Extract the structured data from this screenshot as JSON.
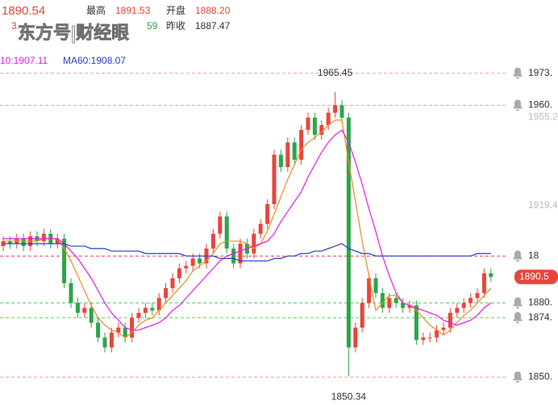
{
  "quote": {
    "last": "1890.54",
    "row1": [
      {
        "label": "最高",
        "value": "1891.53"
      },
      {
        "label": "开盘",
        "value": "1888.20"
      }
    ],
    "row2_partial": [
      "3.",
      "59"
    ],
    "prev_close": {
      "label": "昨收",
      "value": "1887.47"
    }
  },
  "watermark": "东方号|财经眼",
  "legend": [
    "10:1907.11",
    "MA60:1908.07"
  ],
  "chart_data": {
    "type": "candlestick",
    "up_color": "#e8453c",
    "down_color": "#2ca54a",
    "open": [
      1903,
      1905,
      1904,
      1906,
      1903,
      1907,
      1905,
      1908,
      1904,
      1906,
      1888,
      1880,
      1876,
      1878,
      1872,
      1866,
      1862,
      1868,
      1870,
      1866,
      1874,
      1876,
      1878,
      1877,
      1882,
      1886,
      1890,
      1894,
      1895,
      1898,
      1896,
      1902,
      1908,
      1915,
      1902,
      1896,
      1904,
      1900,
      1908,
      1912,
      1920,
      1940,
      1935,
      1945,
      1938,
      1950,
      1955,
      1948,
      1952,
      1957,
      1960,
      1955,
      1862,
      1870,
      1880,
      1890,
      1884,
      1878,
      1882,
      1880,
      1878,
      1879,
      1865,
      1866,
      1866,
      1869,
      1870,
      1876,
      1878,
      1880,
      1882,
      1884,
      1892
    ],
    "high": [
      1907,
      1907,
      1908,
      1908,
      1909,
      1909,
      1910,
      1910,
      1908,
      1908,
      1890,
      1882,
      1880,
      1880,
      1874,
      1868,
      1870,
      1872,
      1872,
      1876,
      1878,
      1880,
      1880,
      1884,
      1888,
      1892,
      1896,
      1897,
      1900,
      1900,
      1904,
      1910,
      1917,
      1917,
      1904,
      1906,
      1906,
      1910,
      1914,
      1922,
      1942,
      1942,
      1947,
      1947,
      1952,
      1957,
      1957,
      1954,
      1959,
      1965.45,
      1962,
      1957,
      1872,
      1882,
      1892,
      1892,
      1886,
      1884,
      1884,
      1882,
      1881,
      1881,
      1868,
      1868,
      1871,
      1872,
      1878,
      1880,
      1882,
      1884,
      1886,
      1894,
      1894
    ],
    "low": [
      1901,
      1902,
      1902,
      1901,
      1901,
      1903,
      1903,
      1902,
      1902,
      1886,
      1878,
      1874,
      1874,
      1870,
      1864,
      1860,
      1860,
      1866,
      1864,
      1864,
      1872,
      1874,
      1875,
      1875,
      1880,
      1884,
      1888,
      1892,
      1893,
      1894,
      1894,
      1900,
      1906,
      1900,
      1894,
      1894,
      1898,
      1898,
      1906,
      1910,
      1918,
      1933,
      1933,
      1936,
      1936,
      1948,
      1946,
      1946,
      1950,
      1955,
      1953,
      1850.34,
      1860,
      1868,
      1878,
      1882,
      1876,
      1876,
      1878,
      1876,
      1876,
      1863,
      1863,
      1864,
      1864,
      1867,
      1868,
      1874,
      1876,
      1878,
      1880,
      1882,
      1888.5
    ],
    "close": [
      1905,
      1904,
      1906,
      1903,
      1907,
      1905,
      1908,
      1904,
      1906,
      1888,
      1880,
      1876,
      1878,
      1872,
      1866,
      1862,
      1868,
      1870,
      1866,
      1874,
      1876,
      1878,
      1877,
      1882,
      1886,
      1890,
      1894,
      1895,
      1898,
      1896,
      1902,
      1908,
      1915,
      1902,
      1896,
      1904,
      1900,
      1908,
      1912,
      1920,
      1940,
      1935,
      1945,
      1938,
      1950,
      1955,
      1948,
      1952,
      1957,
      1960,
      1955,
      1862,
      1870,
      1880,
      1890,
      1884,
      1878,
      1882,
      1880,
      1878,
      1879,
      1865,
      1866,
      1866,
      1869,
      1870,
      1876,
      1878,
      1880,
      1882,
      1884,
      1892,
      1890.5
    ],
    "series": [
      {
        "color": "#f08a1c",
        "values": [
          1905,
          1905,
          1905,
          1905,
          1905,
          1905,
          1906,
          1906,
          1906,
          1902,
          1897,
          1891,
          1885,
          1879,
          1874,
          1871,
          1869,
          1868,
          1866,
          1868,
          1871,
          1873,
          1874,
          1877,
          1880,
          1883,
          1886,
          1889,
          1893,
          1895,
          1897,
          1900,
          1904,
          1905,
          1905,
          1905,
          1904,
          1902,
          1904,
          1909,
          1916,
          1923,
          1930,
          1936,
          1942,
          1945,
          1947,
          1949,
          1952,
          1954,
          1954,
          1937,
          1921,
          1905,
          1891,
          1877,
          1880,
          1883,
          1883,
          1880,
          1879,
          1877,
          1874,
          1871,
          1869,
          1867,
          1869,
          1872,
          1875,
          1877,
          1880,
          1883,
          1886
        ]
      },
      {
        "color": "#e61ee6",
        "values": [
          1906,
          1906,
          1906,
          1906,
          1906,
          1906,
          1906,
          1906,
          1906,
          1904,
          1901,
          1898,
          1894,
          1890,
          1885,
          1880,
          1876,
          1873,
          1870,
          1869,
          1869,
          1870,
          1871,
          1872,
          1874,
          1877,
          1879,
          1882,
          1885,
          1888,
          1891,
          1894,
          1897,
          1899,
          1900,
          1901,
          1902,
          1903,
          1904,
          1905,
          1908,
          1913,
          1917,
          1921,
          1925,
          1931,
          1936,
          1941,
          1945,
          1948,
          1950,
          1945,
          1937,
          1928,
          1918,
          1909,
          1899,
          1891,
          1884,
          1880,
          1879,
          1878,
          1877,
          1876,
          1875,
          1873,
          1872,
          1871,
          1872,
          1873,
          1875,
          1878,
          1880
        ]
      },
      {
        "color": "#2a3fc8",
        "values": [
          1904,
          1904,
          1904,
          1904,
          1904,
          1904,
          1904,
          1904,
          1904,
          1904,
          1903,
          1903,
          1903,
          1902,
          1902,
          1902,
          1901,
          1901,
          1901,
          1901,
          1901,
          1900,
          1900,
          1900,
          1900,
          1900,
          1900,
          1899,
          1899,
          1899,
          1899,
          1899,
          1898,
          1898,
          1898,
          1897,
          1897,
          1897,
          1897,
          1897,
          1898,
          1898,
          1899,
          1899,
          1900,
          1900,
          1901,
          1901,
          1902,
          1903,
          1904,
          1902,
          1901,
          1900,
          1900,
          1899,
          1899,
          1899,
          1899,
          1899,
          1899,
          1899,
          1899,
          1899,
          1899,
          1899,
          1899,
          1899,
          1899,
          1899,
          1900,
          1900,
          1900
        ]
      }
    ],
    "ylim": [
      1840,
      2000
    ],
    "yticks": [
      {
        "value": 1955.2,
        "label": "1955.2"
      },
      {
        "value": 1919.4,
        "label": "1919.4"
      }
    ],
    "alert_lines": [
      {
        "value": 1973,
        "label": "1973.",
        "color": "#f2a0a0"
      },
      {
        "value": 1960,
        "label": "1960.",
        "color": "#f2a0a0"
      },
      {
        "value": 1899,
        "label": "18",
        "color": "#e84848"
      },
      {
        "value": 1880,
        "label": "1880.",
        "color": "#5ccf5c"
      },
      {
        "value": 1874,
        "label": "1874.",
        "color": "#5ccf5c"
      },
      {
        "value": 1850,
        "label": "1850.",
        "color": "#f2a0a0"
      }
    ],
    "current_price": {
      "value": 1890.54,
      "label": "1890.5"
    },
    "annotations": [
      {
        "value": 1965.45,
        "label": "1965.45",
        "index": 49
      },
      {
        "value": 1850.34,
        "label": "1850.34",
        "index": 51
      }
    ]
  }
}
